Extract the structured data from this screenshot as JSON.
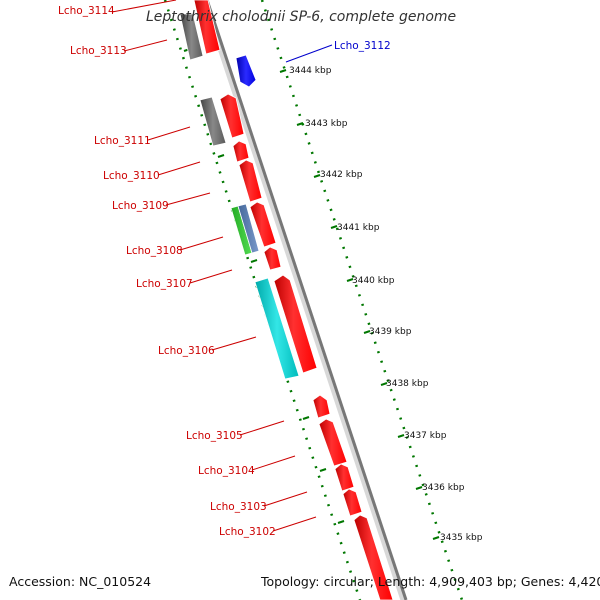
{
  "title": "Leptothrix cholodnii SP-6, complete genome",
  "footer": {
    "accession": "Accession: NC_010524",
    "summary": "Topology: circular; Length: 4,909,403 bp; Genes: 4,420"
  },
  "colors": {
    "cds_forward_outer": "#ff0000",
    "cds_reverse": "#0000ff",
    "other_gene": "#666666",
    "rna": "#00cccc",
    "green_feature": "#33cc33",
    "steelblue_feature": "#5a7fb0",
    "label_reverse_strand": "#cc0000",
    "label_forward_strand": "#0000cc",
    "tick": "#007700",
    "backbone": "#888888"
  },
  "scale_labels": [
    "3444 kbp",
    "3443 kbp",
    "3442 kbp",
    "3441 kbp",
    "3440 kbp",
    "3439 kbp",
    "3438 kbp",
    "3437 kbp",
    "3436 kbp",
    "3435 kbp"
  ],
  "gene_labels": [
    {
      "name": "Lcho_3114",
      "strand": "reverse"
    },
    {
      "name": "Lcho_3113",
      "strand": "reverse"
    },
    {
      "name": "Lcho_3112",
      "strand": "forward"
    },
    {
      "name": "Lcho_3111",
      "strand": "reverse"
    },
    {
      "name": "Lcho_3110",
      "strand": "reverse"
    },
    {
      "name": "Lcho_3109",
      "strand": "reverse"
    },
    {
      "name": "Lcho_3108",
      "strand": "reverse"
    },
    {
      "name": "Lcho_3107",
      "strand": "reverse"
    },
    {
      "name": "Lcho_3106",
      "strand": "reverse"
    },
    {
      "name": "Lcho_3105",
      "strand": "reverse"
    },
    {
      "name": "Lcho_3104",
      "strand": "reverse"
    },
    {
      "name": "Lcho_3103",
      "strand": "reverse"
    },
    {
      "name": "Lcho_3102",
      "strand": "reverse"
    }
  ]
}
